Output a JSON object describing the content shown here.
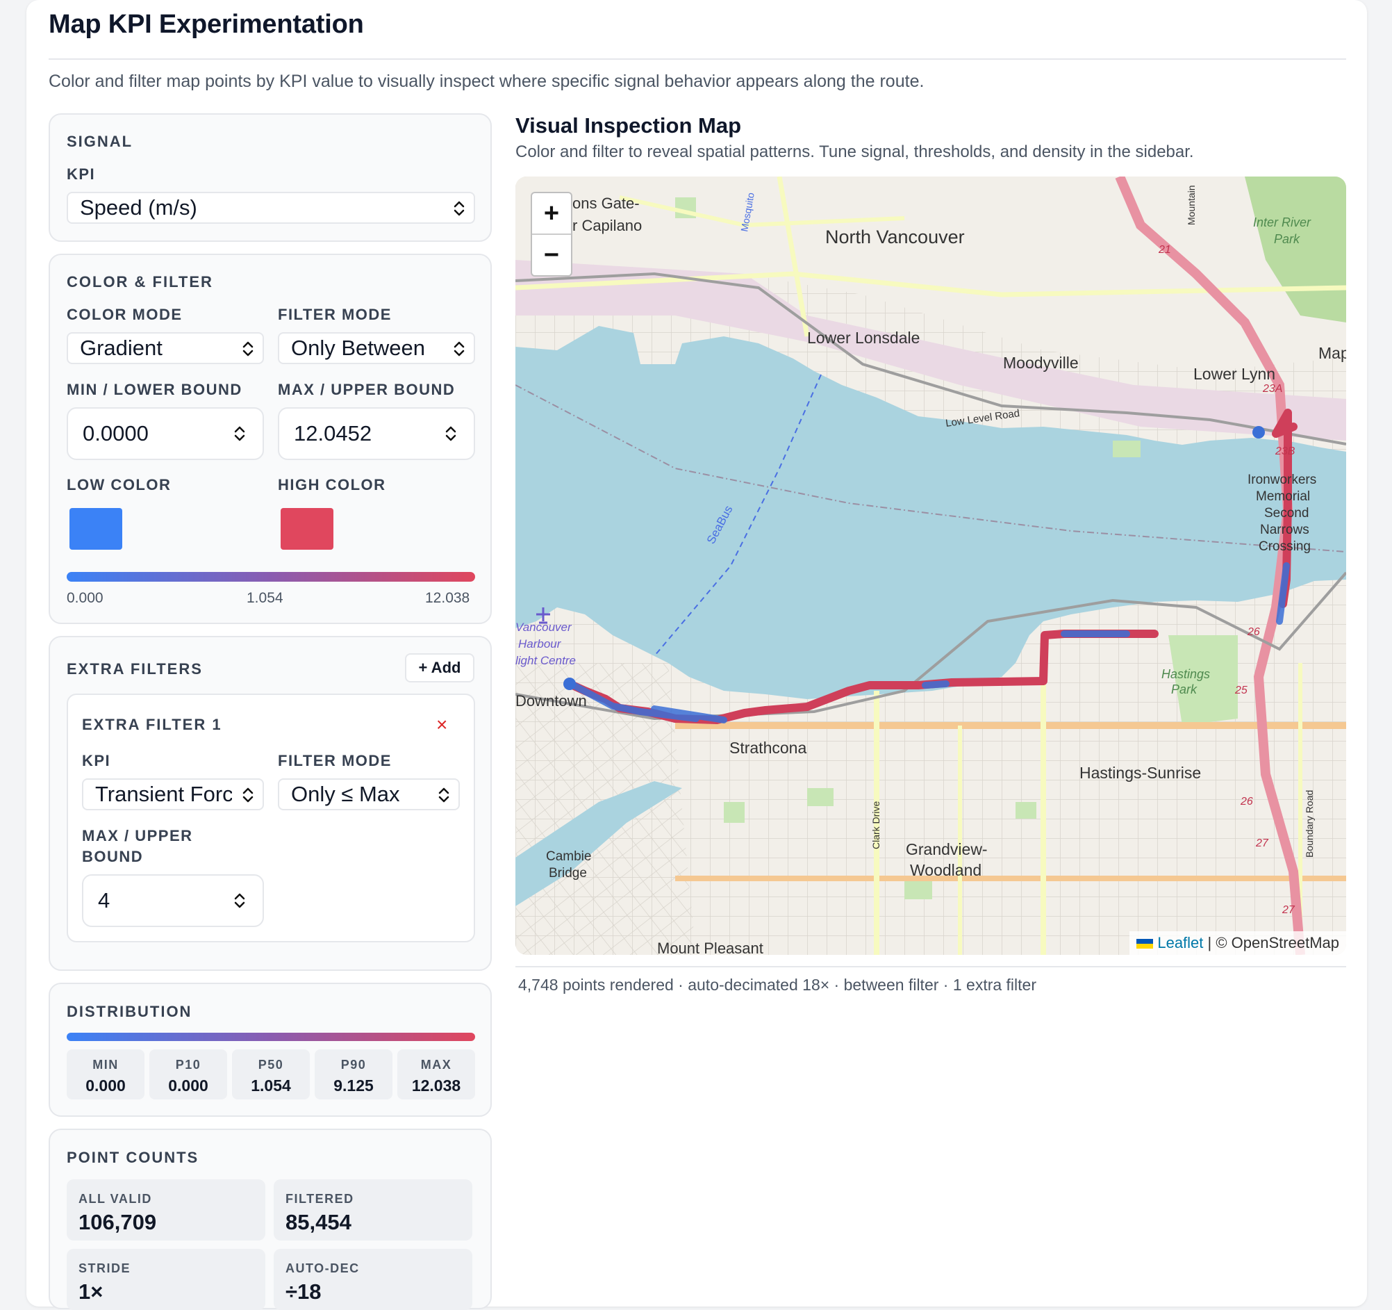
{
  "page": {
    "title": "Map KPI Experimentation",
    "subtitle": "Color and filter map points by KPI value to visually inspect where specific signal behavior appears along the route."
  },
  "signal": {
    "section_title": "SIGNAL",
    "kpi_label": "KPI",
    "kpi_value": "Speed (m/s)"
  },
  "color_filter": {
    "section_title": "COLOR & FILTER",
    "color_mode_label": "COLOR MODE",
    "color_mode_value": "Gradient",
    "filter_mode_label": "FILTER MODE",
    "filter_mode_value": "Only Between",
    "min_label": "MIN / LOWER BOUND",
    "min_value": "0.0000",
    "max_label": "MAX / UPPER BOUND",
    "max_value": "12.0452",
    "low_color_label": "LOW COLOR",
    "low_color": "#3b82f6",
    "high_color_label": "HIGH COLOR",
    "high_color": "#e0475e",
    "legend_min": "0.000",
    "legend_mid": "1.054",
    "legend_max": "12.038"
  },
  "extra_filters": {
    "section_title": "EXTRA FILTERS",
    "add_label": "+ Add",
    "filters": [
      {
        "title": "EXTRA FILTER 1",
        "remove_label": "×",
        "kpi_label": "KPI",
        "kpi_value": "Transient Force",
        "filter_mode_label": "FILTER MODE",
        "filter_mode_value": "Only ≤ Max",
        "max_label": "MAX / UPPER BOUND",
        "max_value": "4"
      }
    ]
  },
  "distribution": {
    "section_title": "DISTRIBUTION",
    "stats": [
      {
        "key": "MIN",
        "value": "0.000"
      },
      {
        "key": "P10",
        "value": "0.000"
      },
      {
        "key": "P50",
        "value": "1.054"
      },
      {
        "key": "P90",
        "value": "9.125"
      },
      {
        "key": "MAX",
        "value": "12.038"
      }
    ]
  },
  "point_counts": {
    "section_title": "POINT COUNTS",
    "items": [
      {
        "key": "ALL VALID",
        "value": "106,709"
      },
      {
        "key": "FILTERED",
        "value": "85,454"
      },
      {
        "key": "STRIDE",
        "value": "1×"
      },
      {
        "key": "AUTO-DEC",
        "value": "÷18"
      }
    ]
  },
  "map": {
    "title": "Visual Inspection Map",
    "subtitle": "Color and filter to reveal spatial patterns. Tune signal, thresholds, and density in the sidebar.",
    "zoom_in": "+",
    "zoom_out": "−",
    "attribution_link": "Leaflet",
    "attribution_text": "| © OpenStreetMap",
    "footer": "4,748 points rendered · auto-decimated 18× · between filter · 1 extra filter",
    "labels": {
      "north_vancouver": "North Vancouver",
      "lions_gate": "ons Gate-",
      "capilano": "r Capilano",
      "lower_lonsdale": "Lower Lonsdale",
      "moodyville": "Moodyville",
      "lower_lynn": "Lower Lynn",
      "map_edge": "Map",
      "inter_river": "Inter River",
      "park": "Park",
      "low_level_road": "Low Level Road",
      "ironworkers": "Ironworkers",
      "memorial": "Memorial",
      "second": "Second",
      "narrows": "Narrows",
      "crossing": "Crossing",
      "seabus": "SeaBus",
      "harbour1": "Vancouver",
      "harbour2": "Harbour",
      "harbour3": "light Centre",
      "downtown": "Downtown",
      "strathcona": "Strathcona",
      "hastings_sunrise": "Hastings-Sunrise",
      "hastings_park1": "Hastings",
      "hastings_park2": "Park",
      "grandview1": "Grandview-",
      "grandview2": "Woodland",
      "cambie1": "Cambie",
      "cambie2": "Bridge",
      "mount_pleasant": "Mount Pleasant",
      "clark_drive": "Clark Drive",
      "boundary_road": "Boundary Road",
      "mountain": "Mountain",
      "mosquito": "Mosquito",
      "route_21": "21",
      "route_23a": "23A",
      "route_23b": "23B",
      "route_26": "26",
      "route_25": "25",
      "route_26b": "26",
      "route_27": "27",
      "route_27b": "27"
    }
  }
}
